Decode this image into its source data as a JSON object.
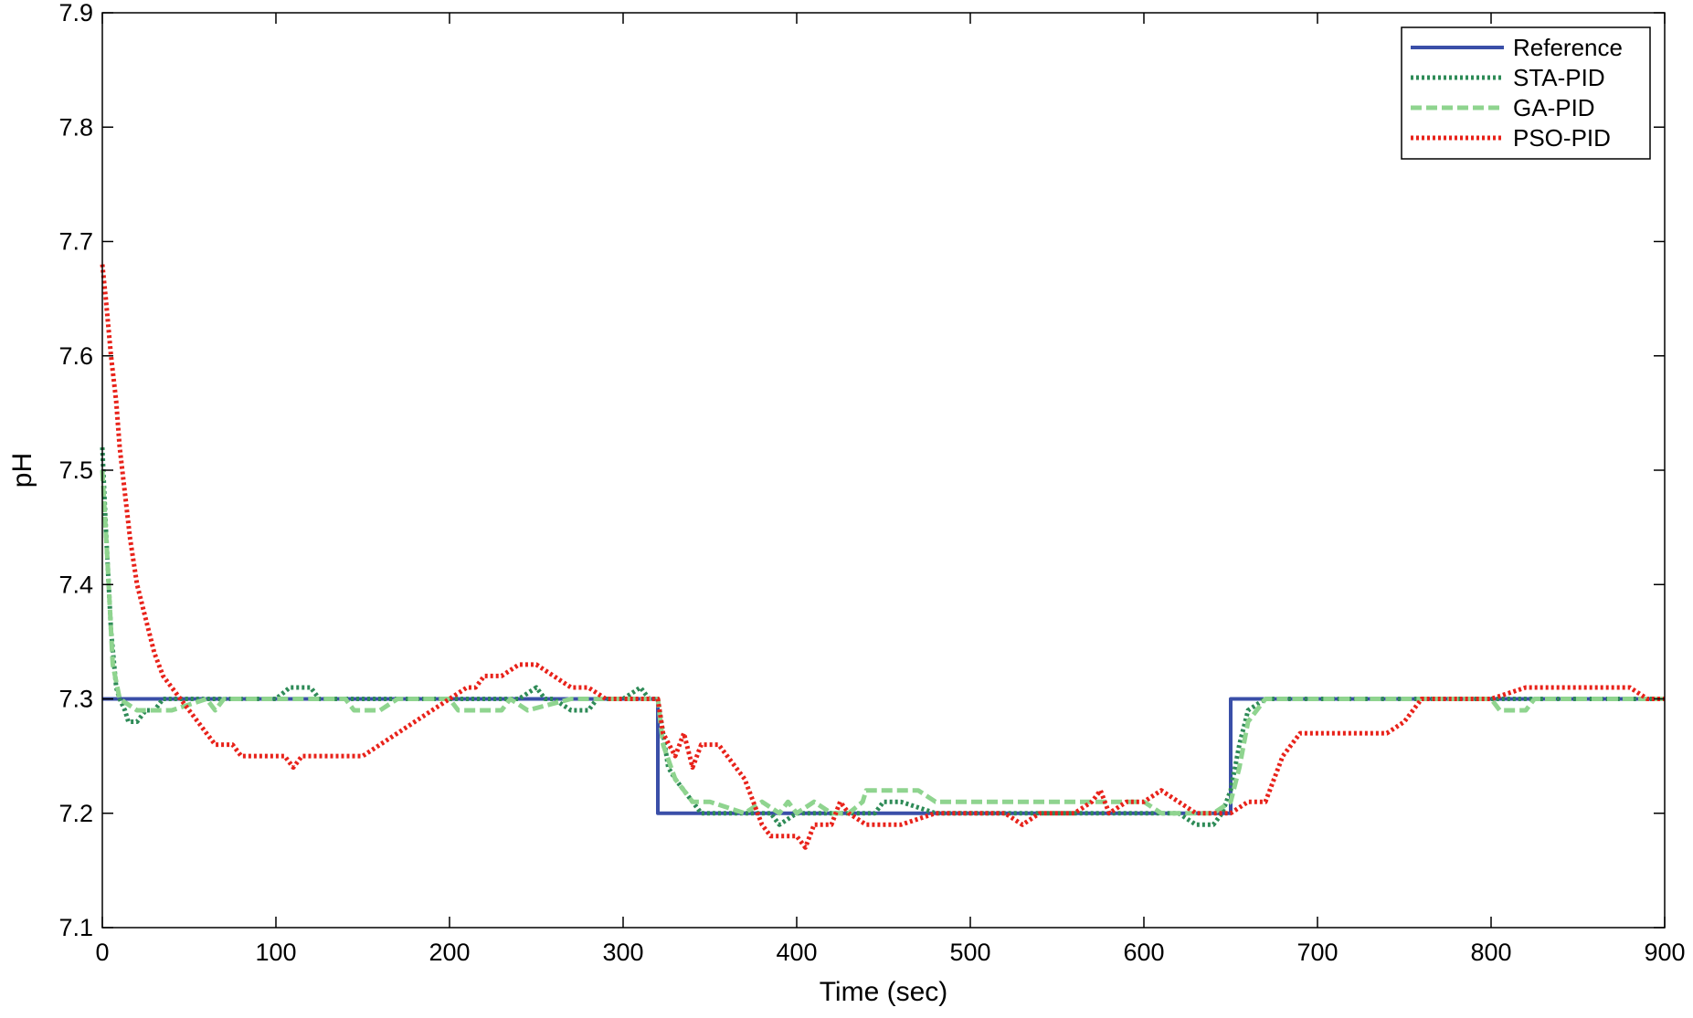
{
  "chart_data": {
    "type": "line",
    "title": "",
    "xlabel": "Time (sec)",
    "ylabel": "pH",
    "xlim": [
      0,
      900
    ],
    "ylim": [
      7.1,
      7.9
    ],
    "xticks": [
      "0",
      "100",
      "200",
      "300",
      "400",
      "500",
      "600",
      "700",
      "800",
      "900"
    ],
    "yticks": [
      "7.1",
      "7.2",
      "7.3",
      "7.4",
      "7.5",
      "7.6",
      "7.7",
      "7.8",
      "7.9"
    ],
    "grid": false,
    "legend_position": "top-right",
    "series": [
      {
        "name": "Reference",
        "color": "#3a4fa8",
        "style": "solid",
        "x": [
          0,
          320,
          320,
          650,
          650,
          900
        ],
        "y": [
          7.3,
          7.3,
          7.2,
          7.2,
          7.3,
          7.3
        ]
      },
      {
        "name": "STA-PID",
        "color": "#2e8b57",
        "style": "dotted",
        "x": [
          0,
          2,
          5,
          8,
          10,
          13,
          15,
          20,
          25,
          30,
          35,
          40,
          60,
          100,
          108,
          112,
          120,
          125,
          135,
          150,
          200,
          240,
          250,
          255,
          260,
          270,
          280,
          285,
          300,
          310,
          315,
          320,
          323,
          326,
          330,
          335,
          340,
          345,
          350,
          360,
          370,
          380,
          385,
          390,
          400,
          420,
          430,
          440,
          445,
          450,
          460,
          480,
          500,
          550,
          600,
          620,
          630,
          640,
          645,
          650,
          655,
          660,
          670,
          700,
          900
        ],
        "y": [
          7.52,
          7.45,
          7.36,
          7.31,
          7.3,
          7.29,
          7.28,
          7.28,
          7.29,
          7.29,
          7.3,
          7.3,
          7.3,
          7.3,
          7.31,
          7.31,
          7.31,
          7.3,
          7.3,
          7.3,
          7.3,
          7.3,
          7.31,
          7.3,
          7.3,
          7.29,
          7.29,
          7.3,
          7.3,
          7.31,
          7.3,
          7.3,
          7.27,
          7.24,
          7.23,
          7.22,
          7.21,
          7.2,
          7.2,
          7.2,
          7.2,
          7.2,
          7.2,
          7.19,
          7.2,
          7.2,
          7.2,
          7.2,
          7.2,
          7.21,
          7.21,
          7.2,
          7.2,
          7.2,
          7.2,
          7.2,
          7.19,
          7.19,
          7.2,
          7.22,
          7.26,
          7.29,
          7.3,
          7.3,
          7.3
        ]
      },
      {
        "name": "GA-PID",
        "color": "#8fd48f",
        "style": "dashed",
        "x": [
          0,
          3,
          6,
          10,
          20,
          40,
          60,
          65,
          70,
          100,
          140,
          145,
          160,
          170,
          200,
          205,
          215,
          230,
          235,
          245,
          270,
          300,
          320,
          323,
          330,
          340,
          350,
          370,
          380,
          390,
          395,
          400,
          410,
          420,
          430,
          438,
          440,
          460,
          470,
          480,
          600,
          610,
          620,
          640,
          650,
          655,
          660,
          670,
          800,
          805,
          820,
          825,
          900
        ],
        "y": [
          7.5,
          7.42,
          7.33,
          7.3,
          7.29,
          7.29,
          7.3,
          7.29,
          7.3,
          7.3,
          7.3,
          7.29,
          7.29,
          7.3,
          7.3,
          7.29,
          7.29,
          7.29,
          7.3,
          7.29,
          7.3,
          7.3,
          7.3,
          7.26,
          7.23,
          7.21,
          7.21,
          7.2,
          7.21,
          7.2,
          7.21,
          7.2,
          7.21,
          7.2,
          7.2,
          7.21,
          7.22,
          7.22,
          7.22,
          7.21,
          7.21,
          7.2,
          7.2,
          7.2,
          7.21,
          7.24,
          7.28,
          7.3,
          7.3,
          7.29,
          7.29,
          7.3,
          7.3
        ]
      },
      {
        "name": "PSO-PID",
        "color": "#e8221a",
        "style": "dotted",
        "x": [
          0,
          2,
          5,
          8,
          10,
          13,
          16,
          20,
          25,
          30,
          35,
          40,
          45,
          50,
          55,
          60,
          65,
          70,
          75,
          80,
          90,
          100,
          105,
          110,
          115,
          120,
          130,
          140,
          150,
          160,
          170,
          180,
          190,
          200,
          210,
          215,
          220,
          225,
          230,
          240,
          250,
          260,
          270,
          280,
          290,
          300,
          320,
          323,
          330,
          335,
          340,
          345,
          355,
          360,
          370,
          375,
          380,
          385,
          390,
          400,
          405,
          410,
          420,
          425,
          430,
          440,
          460,
          480,
          490,
          500,
          520,
          530,
          540,
          560,
          570,
          575,
          580,
          590,
          600,
          610,
          620,
          630,
          640,
          650,
          660,
          670,
          680,
          690,
          700,
          740,
          750,
          760,
          800,
          820,
          880,
          890,
          900
        ],
        "y": [
          7.68,
          7.65,
          7.6,
          7.56,
          7.52,
          7.48,
          7.44,
          7.4,
          7.37,
          7.34,
          7.32,
          7.31,
          7.3,
          7.29,
          7.28,
          7.27,
          7.26,
          7.26,
          7.26,
          7.25,
          7.25,
          7.25,
          7.25,
          7.24,
          7.25,
          7.25,
          7.25,
          7.25,
          7.25,
          7.26,
          7.27,
          7.28,
          7.29,
          7.3,
          7.31,
          7.31,
          7.32,
          7.32,
          7.32,
          7.33,
          7.33,
          7.32,
          7.31,
          7.31,
          7.3,
          7.3,
          7.3,
          7.27,
          7.25,
          7.27,
          7.24,
          7.26,
          7.26,
          7.25,
          7.23,
          7.21,
          7.19,
          7.18,
          7.18,
          7.18,
          7.17,
          7.19,
          7.19,
          7.21,
          7.2,
          7.19,
          7.19,
          7.2,
          7.2,
          7.2,
          7.2,
          7.19,
          7.2,
          7.2,
          7.21,
          7.22,
          7.2,
          7.21,
          7.21,
          7.22,
          7.21,
          7.2,
          7.2,
          7.2,
          7.21,
          7.21,
          7.25,
          7.27,
          7.27,
          7.27,
          7.28,
          7.3,
          7.3,
          7.31,
          7.31,
          7.3,
          7.3
        ]
      }
    ]
  }
}
